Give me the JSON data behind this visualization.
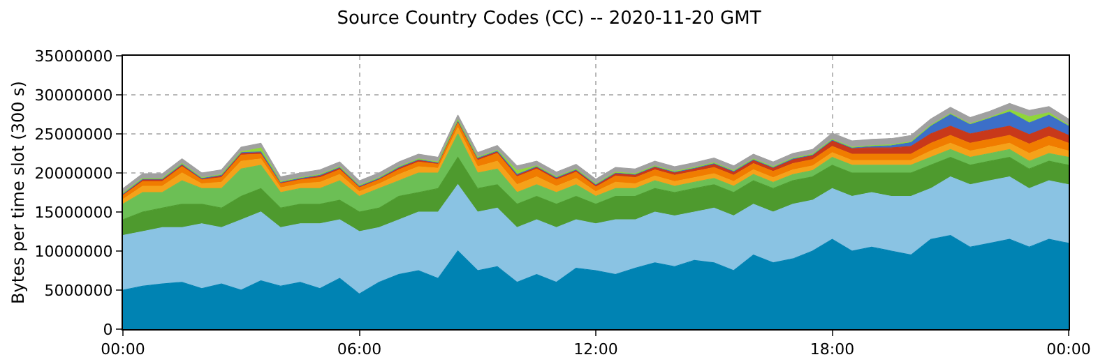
{
  "chart_data": {
    "type": "area",
    "stacked": true,
    "title": "Source Country Codes (CC) -- 2020-11-20 GMT",
    "ylabel": "Bytes per time slot (300 s)",
    "x": [
      0,
      0.5,
      1,
      1.5,
      2,
      2.5,
      3,
      3.5,
      4,
      4.5,
      5,
      5.5,
      6,
      6.5,
      7,
      7.5,
      8,
      8.5,
      9,
      9.5,
      10,
      10.5,
      11,
      11.5,
      12,
      12.5,
      13,
      13.5,
      14,
      14.5,
      15,
      15.5,
      16,
      16.5,
      17,
      17.5,
      18,
      18.5,
      19,
      19.5,
      20,
      20.5,
      21,
      21.5,
      22,
      22.5,
      23,
      23.5,
      24
    ],
    "xlim": [
      0,
      24
    ],
    "xticks": [
      {
        "value": 0,
        "label": "00:00"
      },
      {
        "value": 6,
        "label": "06:00"
      },
      {
        "value": 12,
        "label": "12:00"
      },
      {
        "value": 18,
        "label": "18:00"
      },
      {
        "value": 24,
        "label": "00:00"
      }
    ],
    "ylim": [
      0,
      35000000
    ],
    "yticks": [
      0,
      5000000,
      10000000,
      15000000,
      20000000,
      25000000,
      30000000,
      35000000
    ],
    "grid": true,
    "series": [
      {
        "color": "#0083b3",
        "values": [
          5000000.0,
          5500000.0,
          5800000.0,
          6000000.0,
          5200000.0,
          5800000.0,
          5000000.0,
          6200000.0,
          5500000.0,
          6000000.0,
          5200000.0,
          6500000.0,
          4500000.0,
          6000000.0,
          7000000.0,
          7500000.0,
          6500000.0,
          10000000.0,
          7500000.0,
          8000000.0,
          6000000.0,
          7000000.0,
          6000000.0,
          7800000.0,
          7500000.0,
          7000000.0,
          7800000.0,
          8500000.0,
          8000000.0,
          8800000.0,
          8500000.0,
          7500000.0,
          9500000.0,
          8500000.0,
          9000000.0,
          10000000.0,
          11500000.0,
          10000000.0,
          10500000.0,
          10000000.0,
          9500000.0,
          11500000.0,
          12000000.0,
          10500000.0,
          11000000.0,
          11500000.0,
          10500000.0,
          11500000.0,
          11000000.0
        ]
      },
      {
        "color": "#8ac3e3",
        "values": [
          7000000.0,
          7000000.0,
          7200000.0,
          7000000.0,
          8300000.0,
          7200000.0,
          9000000.0,
          8800000.0,
          7500000.0,
          7500000.0,
          8300000.0,
          7500000.0,
          8000000.0,
          7000000.0,
          7000000.0,
          7500000.0,
          8500000.0,
          8500000.0,
          7500000.0,
          7500000.0,
          7000000.0,
          7000000.0,
          7000000.0,
          6200000.0,
          6000000.0,
          7000000.0,
          6200000.0,
          6500000.0,
          6500000.0,
          6200000.0,
          7000000.0,
          7000000.0,
          6500000.0,
          6500000.0,
          7000000.0,
          6500000.0,
          6500000.0,
          7000000.0,
          7000000.0,
          7000000.0,
          7500000.0,
          6500000.0,
          7500000.0,
          8000000.0,
          8000000.0,
          8000000.0,
          7500000.0,
          7500000.0,
          7500000.0
        ]
      },
      {
        "color": "#4e9a2e",
        "values": [
          2000000.0,
          2500000.0,
          2500000.0,
          3000000.0,
          2500000.0,
          2500000.0,
          3000000.0,
          3000000.0,
          2500000.0,
          2500000.0,
          2500000.0,
          2500000.0,
          2500000.0,
          2500000.0,
          3000000.0,
          2500000.0,
          3000000.0,
          3500000.0,
          3000000.0,
          3000000.0,
          3000000.0,
          3000000.0,
          3000000.0,
          3000000.0,
          2500000.0,
          3000000.0,
          3000000.0,
          3000000.0,
          3000000.0,
          3000000.0,
          3000000.0,
          3000000.0,
          3000000.0,
          3000000.0,
          3000000.0,
          3000000.0,
          3000000.0,
          3000000.0,
          2500000.0,
          3000000.0,
          3000000.0,
          3000000.0,
          2500000.0,
          2500000.0,
          2500000.0,
          2500000.0,
          2500000.0,
          2500000.0,
          2500000.0
        ]
      },
      {
        "color": "#6cbf55",
        "values": [
          2000000.0,
          2500000.0,
          2000000.0,
          3000000.0,
          2000000.0,
          2500000.0,
          3500000.0,
          3000000.0,
          2000000.0,
          2000000.0,
          2000000.0,
          2500000.0,
          2000000.0,
          2500000.0,
          2000000.0,
          2500000.0,
          2000000.0,
          3000000.0,
          2000000.0,
          2000000.0,
          1500000.0,
          1500000.0,
          1500000.0,
          1500000.0,
          1000000.0,
          1000000.0,
          1000000.0,
          1000000.0,
          800000.0,
          800000.0,
          800000.0,
          800000.0,
          800000.0,
          800000.0,
          800000.0,
          800000.0,
          1000000.0,
          1000000.0,
          1000000.0,
          1000000.0,
          1000000.0,
          1000000.0,
          1000000.0,
          1000000.0,
          1000000.0,
          1000000.0,
          1000000.0,
          1000000.0,
          1000000.0
        ]
      },
      {
        "color": "#f5a21a",
        "values": [
          600000.0,
          800000.0,
          800000.0,
          1000000.0,
          600000.0,
          800000.0,
          1000000.0,
          800000.0,
          600000.0,
          600000.0,
          800000.0,
          800000.0,
          600000.0,
          600000.0,
          800000.0,
          800000.0,
          600000.0,
          800000.0,
          800000.0,
          1000000.0,
          1000000.0,
          1000000.0,
          800000.0,
          800000.0,
          600000.0,
          800000.0,
          600000.0,
          600000.0,
          600000.0,
          600000.0,
          600000.0,
          600000.0,
          600000.0,
          600000.0,
          600000.0,
          600000.0,
          600000.0,
          600000.0,
          600000.0,
          600000.0,
          600000.0,
          800000.0,
          800000.0,
          800000.0,
          800000.0,
          800000.0,
          1000000.0,
          1000000.0,
          800000.0
        ]
      },
      {
        "color": "#f07c00",
        "values": [
          500000.0,
          600000.0,
          600000.0,
          800000.0,
          500000.0,
          600000.0,
          800000.0,
          600000.0,
          500000.0,
          500000.0,
          600000.0,
          600000.0,
          500000.0,
          500000.0,
          600000.0,
          600000.0,
          500000.0,
          600000.0,
          800000.0,
          1000000.0,
          1000000.0,
          1000000.0,
          800000.0,
          800000.0,
          600000.0,
          800000.0,
          800000.0,
          800000.0,
          800000.0,
          800000.0,
          800000.0,
          800000.0,
          800000.0,
          800000.0,
          800000.0,
          800000.0,
          800000.0,
          800000.0,
          800000.0,
          800000.0,
          800000.0,
          1000000.0,
          1000000.0,
          1000000.0,
          1000000.0,
          1000000.0,
          1200000.0,
          1200000.0,
          1000000.0
        ]
      },
      {
        "color": "#c8391a",
        "values": [
          200000.0,
          300000.0,
          300000.0,
          300000.0,
          200000.0,
          300000.0,
          300000.0,
          300000.0,
          200000.0,
          200000.0,
          300000.0,
          300000.0,
          200000.0,
          200000.0,
          300000.0,
          300000.0,
          200000.0,
          300000.0,
          300000.0,
          300000.0,
          300000.0,
          300000.0,
          300000.0,
          300000.0,
          300000.0,
          400000.0,
          400000.0,
          400000.0,
          400000.0,
          400000.0,
          500000.0,
          500000.0,
          500000.0,
          500000.0,
          600000.0,
          600000.0,
          800000.0,
          800000.0,
          800000.0,
          800000.0,
          1000000.0,
          1200000.0,
          1200000.0,
          1200000.0,
          1200000.0,
          1200000.0,
          1200000.0,
          1200000.0,
          1000000.0
        ]
      },
      {
        "color": "#3c6fc8",
        "values": [
          0,
          0,
          0,
          0,
          0,
          0,
          0,
          0,
          0,
          0,
          0,
          0,
          0,
          0,
          0,
          0,
          0,
          0,
          0,
          0,
          0,
          0,
          0,
          0,
          0,
          0,
          0,
          0,
          0,
          0,
          0,
          0,
          0,
          0,
          0,
          0,
          0,
          0,
          200000.0,
          300000.0,
          500000.0,
          1000000.0,
          1500000.0,
          1200000.0,
          1500000.0,
          1800000.0,
          1500000.0,
          1500000.0,
          1200000.0
        ]
      },
      {
        "color": "#8fd63a",
        "values": [
          100000.0,
          100000.0,
          100000.0,
          100000.0,
          100000.0,
          100000.0,
          100000.0,
          500000.0,
          100000.0,
          100000.0,
          100000.0,
          100000.0,
          100000.0,
          100000.0,
          100000.0,
          100000.0,
          100000.0,
          100000.0,
          100000.0,
          100000.0,
          500000.0,
          100000.0,
          100000.0,
          100000.0,
          100000.0,
          100000.0,
          100000.0,
          100000.0,
          100000.0,
          100000.0,
          100000.0,
          100000.0,
          100000.0,
          100000.0,
          100000.0,
          100000.0,
          100000.0,
          100000.0,
          100000.0,
          100000.0,
          100000.0,
          100000.0,
          100000.0,
          100000.0,
          100000.0,
          300000.0,
          800000.0,
          300000.0,
          100000.0
        ]
      },
      {
        "color": "#a0a0a0",
        "values": [
          600000.0,
          600000.0,
          600000.0,
          600000.0,
          600000.0,
          600000.0,
          600000.0,
          600000.0,
          600000.0,
          600000.0,
          600000.0,
          600000.0,
          600000.0,
          600000.0,
          600000.0,
          600000.0,
          600000.0,
          600000.0,
          600000.0,
          600000.0,
          600000.0,
          600000.0,
          600000.0,
          600000.0,
          600000.0,
          600000.0,
          600000.0,
          600000.0,
          600000.0,
          600000.0,
          600000.0,
          600000.0,
          600000.0,
          600000.0,
          600000.0,
          600000.0,
          800000.0,
          800000.0,
          800000.0,
          800000.0,
          800000.0,
          800000.0,
          800000.0,
          800000.0,
          800000.0,
          800000.0,
          800000.0,
          800000.0,
          800000.0
        ]
      }
    ]
  }
}
